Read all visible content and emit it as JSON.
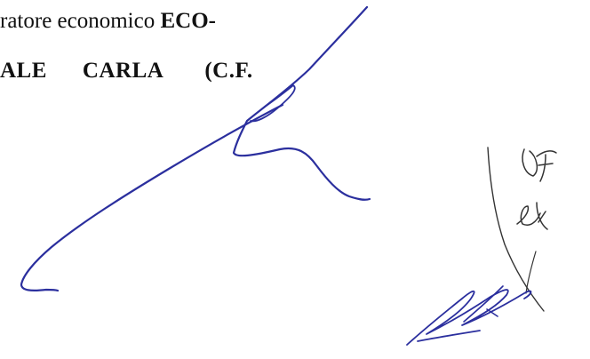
{
  "document": {
    "line1": {
      "regular": "ratore economico ",
      "bold": "ECO-"
    },
    "line2": {
      "word1": "ALE",
      "word2": "CARLA",
      "word3": "(C.F."
    }
  },
  "annotations": {
    "ink_color": "#2b2f9e",
    "pencil_color": "#333333"
  }
}
